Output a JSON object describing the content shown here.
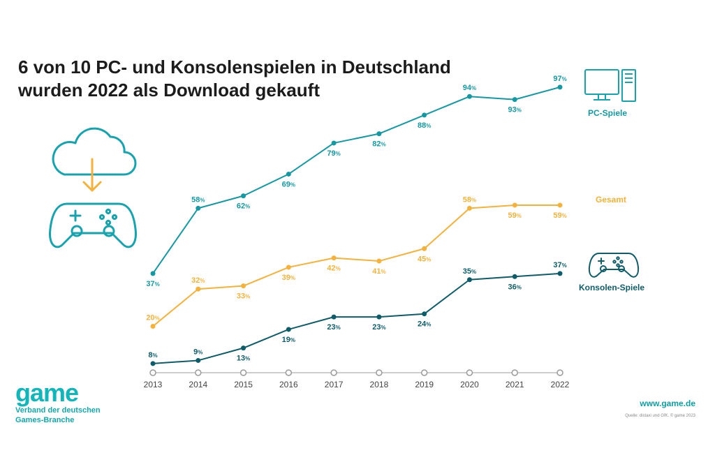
{
  "title": {
    "line1": "6 von 10 PC- und Konsolenspielen in Deutschland",
    "line2": "wurden 2022 als Download gekauft"
  },
  "chart_data": {
    "type": "line",
    "title": "6 von 10 PC- und Konsolenspielen in Deutschland wurden 2022 als Download gekauft",
    "x": [
      "2013",
      "2014",
      "2015",
      "2016",
      "2017",
      "2018",
      "2019",
      "2020",
      "2021",
      "2022"
    ],
    "unit": "%",
    "ylim": [
      0,
      100
    ],
    "grid": false,
    "series": [
      {
        "name": "PC-Spiele",
        "color": "#1598a2",
        "values": [
          37,
          58,
          62,
          69,
          79,
          82,
          88,
          94,
          93,
          97
        ]
      },
      {
        "name": "Gesamt",
        "color": "#f4b23d",
        "values": [
          20,
          32,
          33,
          39,
          42,
          41,
          45,
          58,
          59,
          59
        ]
      },
      {
        "name": "Konsolen-Spiele",
        "color": "#0f5c69",
        "values": [
          8,
          9,
          13,
          19,
          23,
          23,
          24,
          35,
          36,
          37
        ]
      }
    ]
  },
  "icons": {
    "download": "cloud-download-icon",
    "gamepad": "gamepad-icon",
    "pc": "desktop-computer-icon",
    "console": "gamepad-icon"
  },
  "logo": {
    "word": "game",
    "line1": "Verband der deutschen",
    "line2": "Games-Branche"
  },
  "footer": {
    "website": "www.game.de",
    "source": "Quelle: distaxi und GfK. © game 2023"
  },
  "colors": {
    "teal": "#1598a2",
    "orange": "#f4b23d",
    "dark_teal": "#0f5c69",
    "logo": "#12b5b8"
  }
}
